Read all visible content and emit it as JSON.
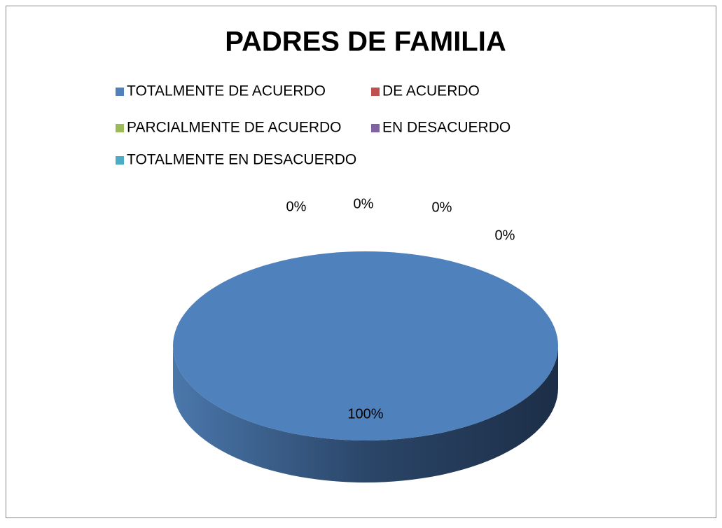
{
  "chart_data": {
    "type": "pie",
    "title": "PADRES DE FAMILIA",
    "categories": [
      "TOTALMENTE DE ACUERDO",
      "DE ACUERDO",
      "PARCIALMENTE DE ACUERDO",
      "EN DESACUERDO",
      "TOTALMENTE EN DESACUERDO"
    ],
    "values": [
      100,
      0,
      0,
      0,
      0
    ],
    "value_labels": [
      "100%",
      "0%",
      "0%",
      "0%",
      "0%"
    ],
    "colors": [
      "#4f81bd",
      "#c0504d",
      "#9bbb59",
      "#8064a2",
      "#4bacc6"
    ],
    "legend": "top"
  }
}
